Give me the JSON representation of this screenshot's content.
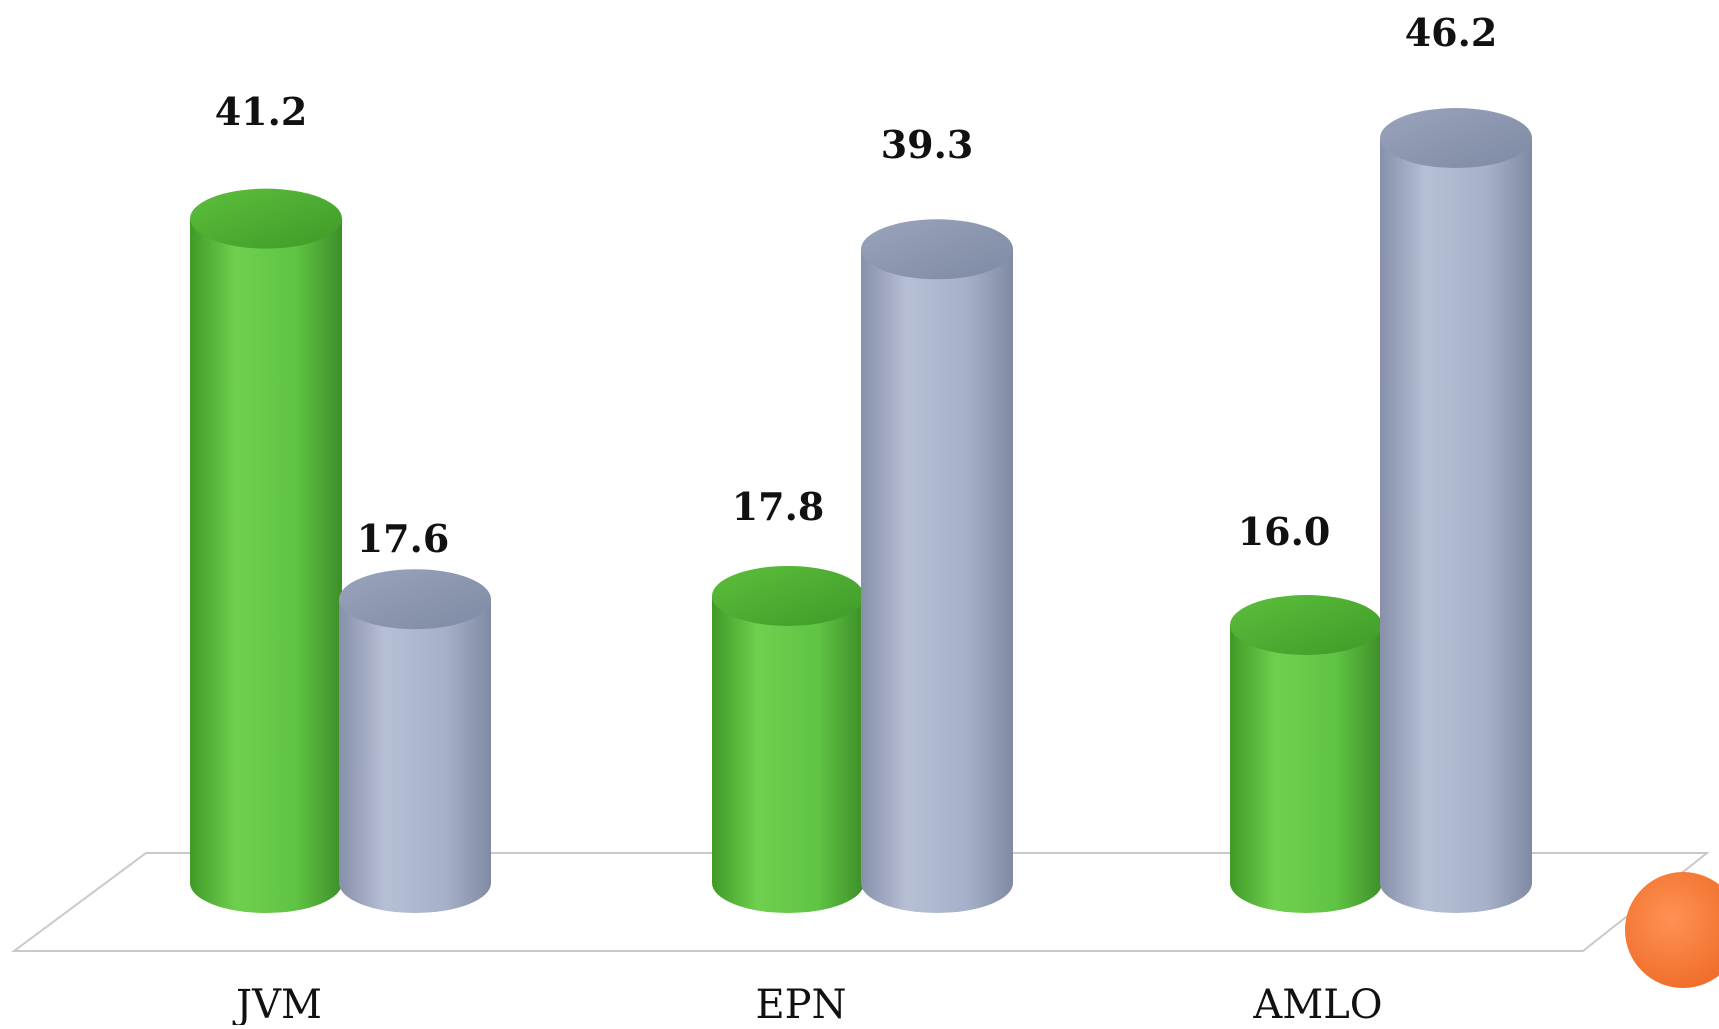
{
  "chart_data": {
    "type": "bar",
    "categories": [
      "JVM",
      "EPN",
      "AMLO"
    ],
    "series": [
      {
        "values": [
          41.2,
          17.8,
          16.0
        ],
        "color": "#5fc343"
      },
      {
        "values": [
          17.6,
          39.3,
          46.2
        ],
        "color": "#a6b1c9"
      }
    ],
    "data_labels": [
      [
        "41.2",
        "17.6"
      ],
      [
        "17.8",
        "39.3"
      ],
      [
        "16.0",
        "46.2"
      ]
    ],
    "title": "",
    "xlabel": "",
    "ylabel": "",
    "ylim": [
      0,
      46.2
    ],
    "grid": false,
    "legend": false,
    "style": "3d-cylinder",
    "decoration_color": "#f47c3c"
  }
}
